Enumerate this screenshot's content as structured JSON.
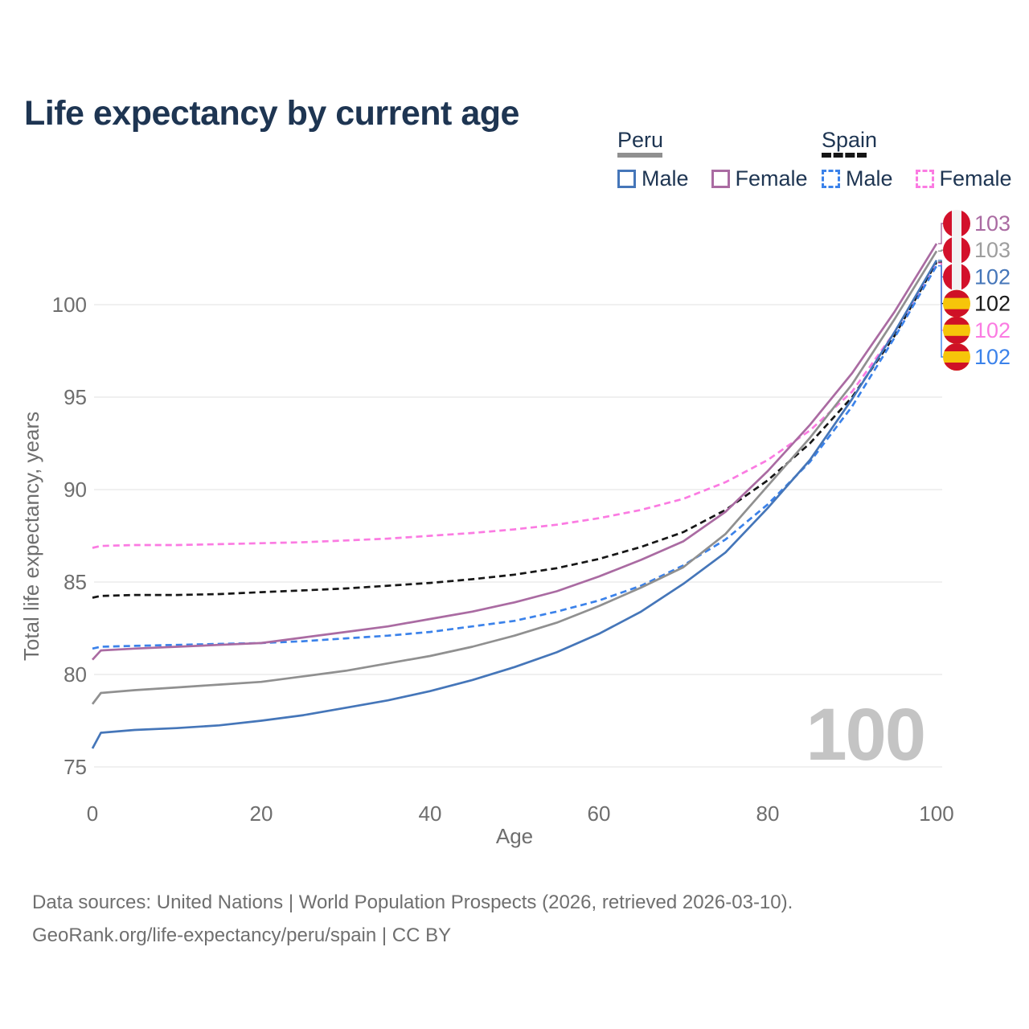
{
  "title": "Life expectancy by current age",
  "watermark": "100",
  "footer": {
    "line1": "Data sources: United Nations | World Population Prospects (2026, retrieved 2026-03-10).",
    "line2": "GeoRank.org/life-expectancy/peru/spain | CC BY"
  },
  "legend": {
    "groups": [
      {
        "id": "peru",
        "label": "Peru",
        "line_color": "#909090",
        "line_style": "solid",
        "items": [
          {
            "id": "peru-male",
            "label": "Male",
            "color": "#4576b9",
            "style": "solid"
          },
          {
            "id": "peru-female",
            "label": "Female",
            "color": "#aa6ba2",
            "style": "solid"
          }
        ]
      },
      {
        "id": "spain",
        "label": "Spain",
        "line_color": "#161616",
        "line_style": "dashed",
        "items": [
          {
            "id": "spain-male",
            "label": "Male",
            "color": "#3b82ea",
            "style": "dashed"
          },
          {
            "id": "spain-female",
            "label": "Female",
            "color": "#fb7be2",
            "style": "dashed"
          }
        ]
      }
    ]
  },
  "chart_data": {
    "type": "line",
    "title": "Life expectancy by current age",
    "xlabel": "Age",
    "ylabel": "Total life expectancy, years",
    "x_ticks": [
      0,
      20,
      40,
      60,
      80,
      100
    ],
    "y_ticks": [
      75,
      80,
      85,
      90,
      95,
      100
    ],
    "xlim": [
      0,
      100
    ],
    "ylim": [
      74.6,
      104
    ],
    "grid": "horizontal",
    "grid_color": "#ececec",
    "tick_color": "#6e6e6e",
    "x": [
      0,
      1,
      5,
      10,
      15,
      20,
      25,
      30,
      35,
      40,
      45,
      50,
      55,
      60,
      65,
      70,
      75,
      80,
      85,
      90,
      95,
      100
    ],
    "series": [
      {
        "id": "spain-female",
        "name": "Spain Female",
        "color": "#fb7be2",
        "dash": "8 5",
        "flag": "spain",
        "end_label": "102",
        "values": [
          86.85,
          86.95,
          87.0,
          87.0,
          87.05,
          87.1,
          87.15,
          87.25,
          87.35,
          87.5,
          87.65,
          87.85,
          88.1,
          88.45,
          88.9,
          89.5,
          90.4,
          91.6,
          93.2,
          95.3,
          98.5,
          102.25
        ]
      },
      {
        "id": "spain-avg",
        "name": "Spain",
        "color": "#161616",
        "label_color": "#1a1a1a",
        "dash": "8 5",
        "flag": "spain",
        "end_label": "102",
        "values": [
          84.15,
          84.25,
          84.3,
          84.3,
          84.35,
          84.45,
          84.55,
          84.65,
          84.8,
          84.95,
          85.15,
          85.4,
          85.75,
          86.25,
          86.9,
          87.7,
          88.9,
          90.5,
          92.5,
          95.0,
          98.3,
          102.3
        ]
      },
      {
        "id": "spain-male",
        "name": "Spain Male",
        "color": "#3b82ea",
        "dash": "8 5",
        "flag": "spain",
        "end_label": "102",
        "values": [
          81.4,
          81.5,
          81.55,
          81.6,
          81.65,
          81.7,
          81.8,
          81.95,
          82.1,
          82.3,
          82.6,
          82.9,
          83.4,
          84.0,
          84.8,
          85.9,
          87.3,
          89.2,
          91.5,
          94.5,
          98.2,
          102.1
        ]
      },
      {
        "id": "peru-male",
        "name": "Peru Male",
        "color": "#4576b9",
        "dash": null,
        "flag": "peru",
        "end_label": "102",
        "values": [
          76.0,
          76.85,
          77.0,
          77.1,
          77.25,
          77.5,
          77.8,
          78.2,
          78.6,
          79.1,
          79.7,
          80.4,
          81.2,
          82.2,
          83.4,
          84.9,
          86.6,
          89.0,
          91.6,
          94.9,
          98.5,
          102.4
        ]
      },
      {
        "id": "peru-avg",
        "name": "Peru",
        "color": "#909090",
        "label_color": "#9e9e9e",
        "dash": null,
        "flag": "peru",
        "end_label": "103",
        "values": [
          78.4,
          79.0,
          79.15,
          79.3,
          79.45,
          79.6,
          79.9,
          80.2,
          80.6,
          81.0,
          81.5,
          82.1,
          82.8,
          83.7,
          84.7,
          85.8,
          87.6,
          90.2,
          92.8,
          95.7,
          99.2,
          102.9
        ]
      },
      {
        "id": "peru-female",
        "name": "Peru Female",
        "color": "#aa6ba2",
        "dash": null,
        "flag": "peru",
        "end_label": "103",
        "values": [
          80.8,
          81.3,
          81.4,
          81.5,
          81.6,
          81.7,
          82.0,
          82.3,
          82.6,
          83.0,
          83.4,
          83.9,
          84.5,
          85.3,
          86.2,
          87.2,
          88.8,
          91.0,
          93.5,
          96.3,
          99.6,
          103.3
        ]
      }
    ],
    "flag_colors": {
      "peru_red": "#d3112b",
      "spain_red": "#cf1126",
      "spain_yellow": "#f6c50a"
    }
  }
}
